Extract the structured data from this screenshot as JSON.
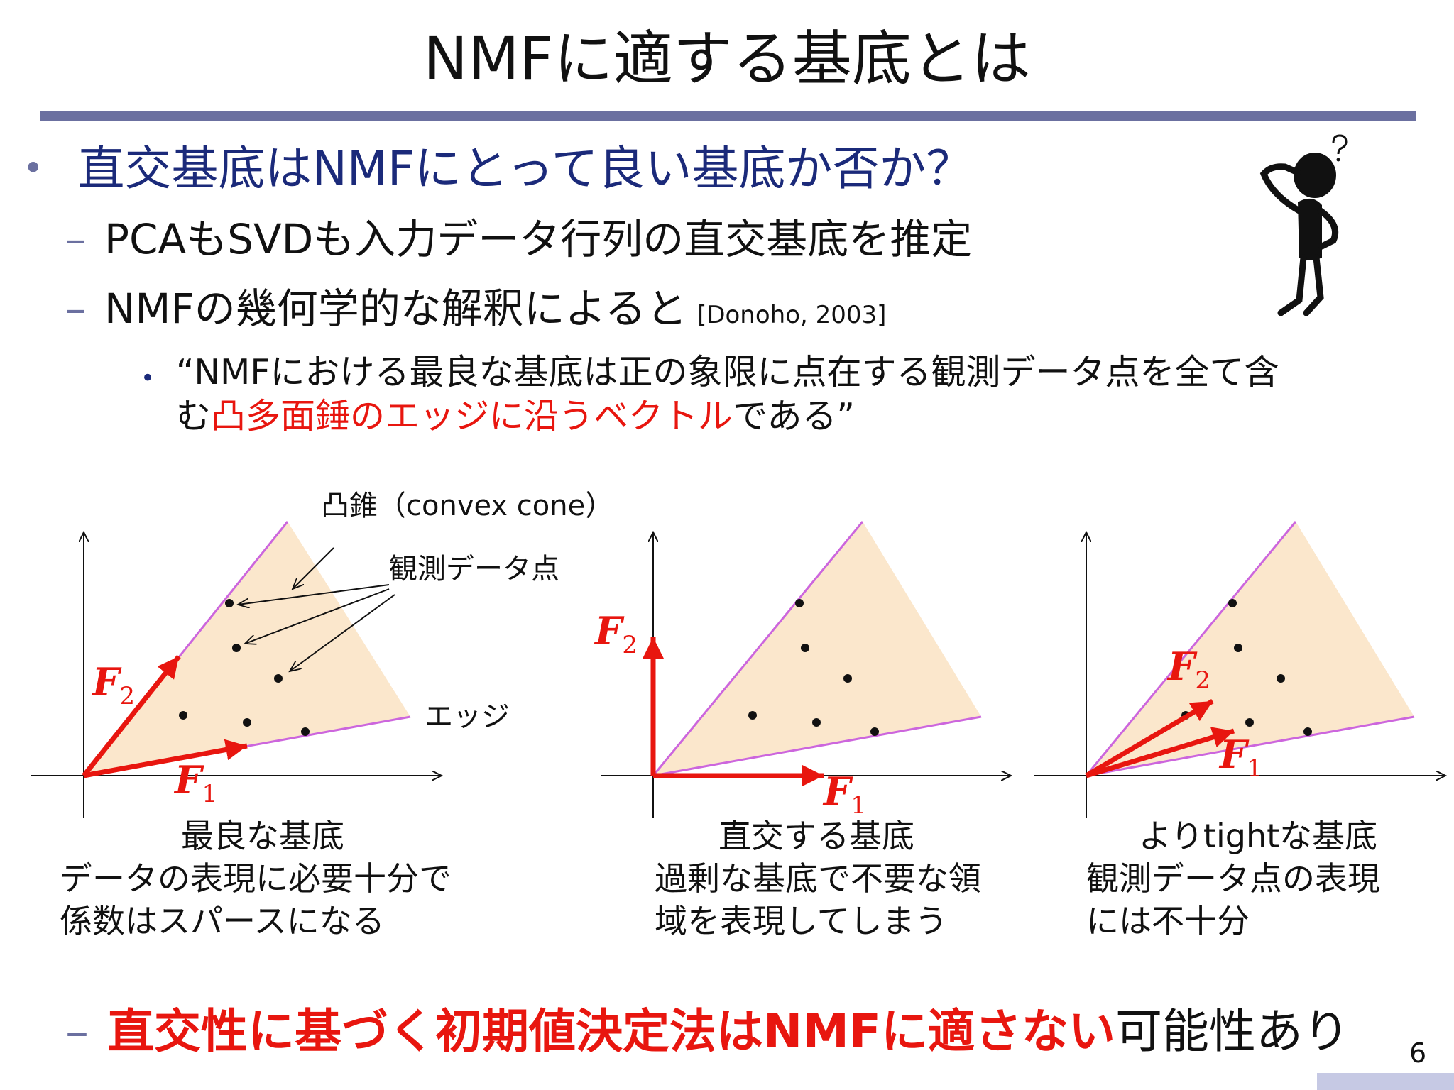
{
  "slide": {
    "title": "NMFに適する基底とは",
    "page_number": "6"
  },
  "bullets": {
    "level1": "直交基底はNMFにとって良い基底か否か？",
    "pca_svd": "PCAもSVDも入力データ行列の直交基底を推定",
    "geometric": "NMFの幾何学的な解釈によると",
    "citation": "[Donoho, 2003]",
    "quote_part1": "“NMFにおける最良な基底は正の象限に点在する観測データ点を全て含",
    "quote_part2_pre": "む",
    "quote_part2_red": "凸多面錘のエッジに沿うベクトル",
    "quote_part2_post": "である”",
    "conclusion_red": "直交性に基づく初期値決定法はNMFに適さない",
    "conclusion_rest": "可能性あり"
  },
  "diagrams": {
    "annotations": {
      "cone": "凸錐（convex cone）",
      "points": "観測データ点",
      "edge": "エッジ"
    },
    "vector_labels": {
      "f1_base": "F",
      "f1_sub": "1",
      "f2_base": "F",
      "f2_sub": "2"
    },
    "panels": [
      {
        "title": "最良な基底",
        "line1": "データの表現に必要十分で",
        "line2": "係数はスパースになる"
      },
      {
        "title": "直交する基底",
        "line1": "過剰な基底で不要な領",
        "line2": "域を表現してしまう"
      },
      {
        "title": "よりtightな基底",
        "line1": "観測データ点の表現",
        "line2": "には不十分"
      }
    ]
  },
  "colors": {
    "title_rule": "#6B70A0",
    "heading_blue": "#1B2A7A",
    "emphasis_red": "#E8160F",
    "cone_fill": "#FBE7CC",
    "cone_edge": "#CC66DD"
  },
  "icons": {
    "thinking": "thinking-person-icon"
  }
}
